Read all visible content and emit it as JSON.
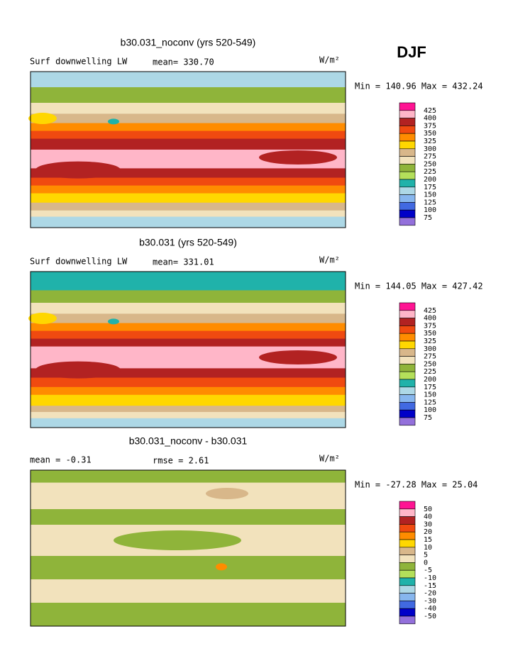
{
  "label": "DJF",
  "panels": [
    {
      "title": "b30.031_noconv (yrs 520-549)",
      "left": "Surf downwelling LW",
      "center": "mean= 330.70",
      "units": "W/m²",
      "range": "Min = 140.96 Max = 432.24",
      "colorbar": {
        "levels": [
          425,
          400,
          375,
          350,
          325,
          300,
          275,
          250,
          225,
          200,
          175,
          150,
          125,
          100,
          75
        ],
        "colors": [
          "#ff1493",
          "#ffb6c8",
          "#b22222",
          "#f04a10",
          "#ff8c00",
          "#ffd700",
          "#d8b78a",
          "#f2e2bc",
          "#8fb43a",
          "#b4e05a",
          "#20b2aa",
          "#add8e6",
          "#87b6ee",
          "#4169e1",
          "#0000c8",
          "#9370db"
        ]
      }
    },
    {
      "title": "b30.031 (yrs 520-549)",
      "left": "Surf downwelling LW",
      "center": "mean= 331.01",
      "units": "W/m²",
      "range": "Min = 144.05 Max = 427.42",
      "colorbar": {
        "levels": [
          425,
          400,
          375,
          350,
          325,
          300,
          275,
          250,
          225,
          200,
          175,
          150,
          125,
          100,
          75
        ],
        "colors": [
          "#ff1493",
          "#ffb6c8",
          "#b22222",
          "#f04a10",
          "#ff8c00",
          "#ffd700",
          "#d8b78a",
          "#f2e2bc",
          "#8fb43a",
          "#b4e05a",
          "#20b2aa",
          "#add8e6",
          "#87b6ee",
          "#4169e1",
          "#0000c8",
          "#9370db"
        ]
      }
    },
    {
      "title": "b30.031_noconv - b30.031",
      "left": "mean =  -0.31",
      "center": "rmse =  2.61",
      "units": "W/m²",
      "range": "Min = -27.28 Max =  25.04",
      "colorbar": {
        "levels": [
          50,
          40,
          30,
          20,
          15,
          10,
          5,
          0,
          -5,
          -10,
          -15,
          -20,
          -30,
          -40,
          -50
        ],
        "colors": [
          "#ff1493",
          "#ffb6c8",
          "#b22222",
          "#f04a10",
          "#ff8c00",
          "#ffd700",
          "#d8b78a",
          "#f2e2bc",
          "#8fb43a",
          "#b4e05a",
          "#20b2aa",
          "#add8e6",
          "#87b6ee",
          "#4169e1",
          "#0000c8",
          "#9370db"
        ]
      }
    }
  ]
}
